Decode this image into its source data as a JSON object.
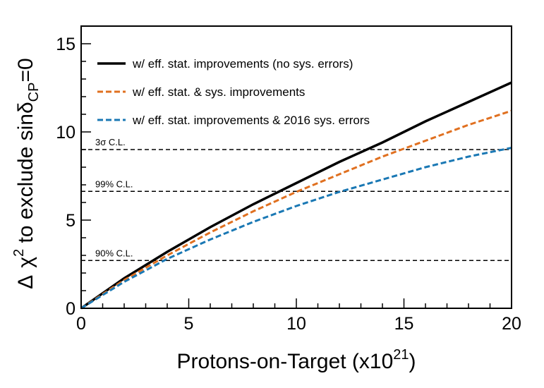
{
  "chart_data": {
    "type": "line",
    "xlabel_main": "Protons-on-Target (x10",
    "xlabel_sup": "21",
    "xlabel_end": ")",
    "ylabel_delta": "Δ",
    "ylabel_chi": "χ",
    "ylabel_sup": "2",
    "ylabel_mid": " to exclude sinδ",
    "ylabel_sub": "CP",
    "ylabel_end": "=0",
    "xlim": [
      0,
      20
    ],
    "ylim": [
      0,
      16
    ],
    "x_ticks": [
      "0",
      "5",
      "10",
      "15",
      "20"
    ],
    "y_ticks": [
      "0",
      "5",
      "10",
      "15"
    ],
    "series": [
      {
        "name": "w/ eff. stat. improvements (no sys. errors)",
        "color": "#000000",
        "style": "solid",
        "x": [
          0,
          2,
          4,
          6,
          8,
          10,
          12,
          14,
          16,
          18,
          20
        ],
        "y": [
          0,
          1.7,
          3.2,
          4.6,
          5.9,
          7.1,
          8.3,
          9.4,
          10.6,
          11.7,
          12.8
        ]
      },
      {
        "name": "w/ eff. stat. & sys. improvements",
        "color": "#e07020",
        "style": "dashed",
        "x": [
          0,
          2,
          4,
          6,
          8,
          10,
          12,
          14,
          16,
          18,
          20
        ],
        "y": [
          0,
          1.6,
          3.0,
          4.3,
          5.5,
          6.6,
          7.6,
          8.6,
          9.5,
          10.4,
          11.2
        ]
      },
      {
        "name": "w/ eff. stat. improvements & 2016 sys. errors",
        "color": "#1a78b4",
        "style": "dashed",
        "x": [
          0,
          2,
          4,
          6,
          8,
          10,
          12,
          14,
          16,
          18,
          20
        ],
        "y": [
          0,
          1.5,
          2.8,
          3.9,
          4.9,
          5.8,
          6.6,
          7.3,
          8.0,
          8.6,
          9.1
        ]
      }
    ],
    "reference_lines": [
      {
        "label": "3σ C.L.",
        "y": 9.0
      },
      {
        "label": "99% C.L.",
        "y": 6.63
      },
      {
        "label": "90% C.L.",
        "y": 2.71
      }
    ],
    "legend_placement": "top-left",
    "grid": false
  }
}
